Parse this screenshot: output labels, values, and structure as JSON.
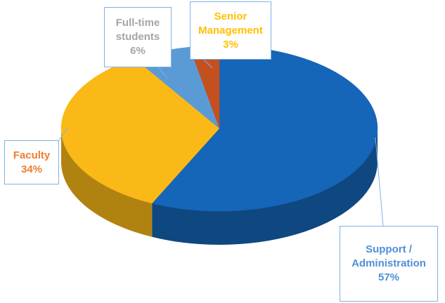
{
  "chart_data": {
    "type": "pie3d",
    "categories": [
      "Support / Administration",
      "Faculty",
      "Full-time students",
      "Senior Management"
    ],
    "values": [
      57,
      34,
      6,
      3
    ],
    "value_labels": [
      "57%",
      "34%",
      "6%",
      "3%"
    ],
    "colors": [
      "#1565b8",
      "#fbb917",
      "#5b9bd5",
      "#c5501f"
    ],
    "label_colors": [
      "#4f8fd6",
      "#ed7d31",
      "#a5a5a5",
      "#ffc000"
    ]
  }
}
